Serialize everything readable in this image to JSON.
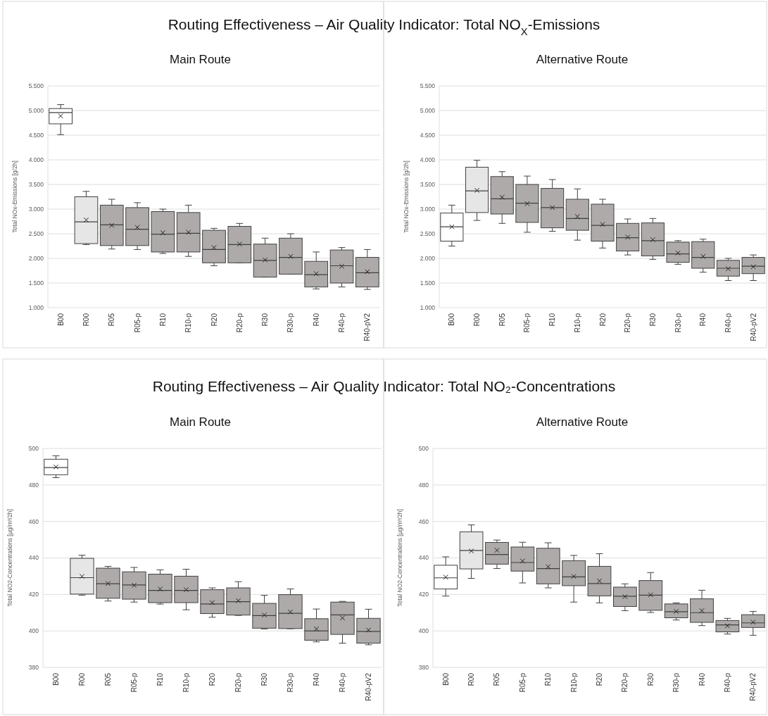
{
  "chart_data": [
    {
      "type": "box",
      "title": "Routing Effectiveness – Air Quality Indicator: Total NO$_{X}$-Emissions",
      "subtitle": "Main Route",
      "ylabel": "Total NOx-Emissions  [g/2h]",
      "categories": [
        "B00",
        "R00",
        "R05",
        "R05-p",
        "R10",
        "R10-p",
        "R20",
        "R20-p",
        "R30",
        "R30-p",
        "R40",
        "R40-p",
        "R40-pV2"
      ],
      "colors": [
        "#ffffff",
        "#e6e6e6",
        "#aeaaaa",
        "#aeaaaa",
        "#aeaaaa",
        "#aeaaaa",
        "#aeaaaa",
        "#aeaaaa",
        "#aeaaaa",
        "#aeaaaa",
        "#aeaaaa",
        "#aeaaaa",
        "#aeaaaa"
      ],
      "boxes": [
        {
          "low": 4510,
          "q1": 4730,
          "median": 4960,
          "q3": 5040,
          "high": 5120,
          "mean": 4890
        },
        {
          "low": 2280,
          "q1": 2300,
          "median": 2740,
          "q3": 3250,
          "high": 3360,
          "mean": 2780
        },
        {
          "low": 2190,
          "q1": 2260,
          "median": 2680,
          "q3": 3080,
          "high": 3200,
          "mean": 2670
        },
        {
          "low": 2180,
          "q1": 2260,
          "median": 2590,
          "q3": 3030,
          "high": 3130,
          "mean": 2630
        },
        {
          "low": 2100,
          "q1": 2130,
          "median": 2490,
          "q3": 2950,
          "high": 3000,
          "mean": 2520
        },
        {
          "low": 2040,
          "q1": 2130,
          "median": 2510,
          "q3": 2930,
          "high": 3080,
          "mean": 2530
        },
        {
          "low": 1850,
          "q1": 1910,
          "median": 2180,
          "q3": 2570,
          "high": 2610,
          "mean": 2220
        },
        {
          "low": 1910,
          "q1": 1910,
          "median": 2280,
          "q3": 2650,
          "high": 2710,
          "mean": 2290
        },
        {
          "low": 1620,
          "q1": 1620,
          "median": 1960,
          "q3": 2290,
          "high": 2410,
          "mean": 1970
        },
        {
          "low": 1680,
          "q1": 1680,
          "median": 2020,
          "q3": 2410,
          "high": 2500,
          "mean": 2040
        },
        {
          "low": 1380,
          "q1": 1420,
          "median": 1670,
          "q3": 1940,
          "high": 2130,
          "mean": 1690
        },
        {
          "low": 1420,
          "q1": 1500,
          "median": 1850,
          "q3": 2170,
          "high": 2220,
          "mean": 1840
        },
        {
          "low": 1370,
          "q1": 1420,
          "median": 1710,
          "q3": 2020,
          "high": 2180,
          "mean": 1730
        }
      ],
      "ylim": [
        1000,
        5500
      ],
      "yticks": [
        {
          "value": 1000,
          "label": "1.000"
        },
        {
          "value": 1500,
          "label": "1.500"
        },
        {
          "value": 2000,
          "label": "2.000"
        },
        {
          "value": 2500,
          "label": "2.500"
        },
        {
          "value": 3000,
          "label": "3.000"
        },
        {
          "value": 3500,
          "label": "3.500"
        },
        {
          "value": 4000,
          "label": "4.000"
        },
        {
          "value": 4500,
          "label": "4.500"
        },
        {
          "value": 5000,
          "label": "5.000"
        },
        {
          "value": 5500,
          "label": "5.500"
        }
      ],
      "grid": "y",
      "marker": "cross"
    },
    {
      "type": "box",
      "subtitle": "Alternative Route",
      "ylabel": "Total NOx-Emissions  [g/2h]",
      "categories": [
        "B00",
        "R00",
        "R05",
        "R05-p",
        "R10",
        "R10-p",
        "R20",
        "R20-p",
        "R30",
        "R30-p",
        "R40",
        "R40-p",
        "R40-pV2"
      ],
      "colors": [
        "#ffffff",
        "#e6e6e6",
        "#aeaaaa",
        "#aeaaaa",
        "#aeaaaa",
        "#aeaaaa",
        "#aeaaaa",
        "#aeaaaa",
        "#aeaaaa",
        "#aeaaaa",
        "#aeaaaa",
        "#aeaaaa",
        "#aeaaaa"
      ],
      "boxes": [
        {
          "low": 2250,
          "q1": 2350,
          "median": 2640,
          "q3": 2920,
          "high": 3080,
          "mean": 2640
        },
        {
          "low": 2770,
          "q1": 2930,
          "median": 3370,
          "q3": 3850,
          "high": 3990,
          "mean": 3380
        },
        {
          "low": 2710,
          "q1": 2900,
          "median": 3210,
          "q3": 3660,
          "high": 3760,
          "mean": 3240
        },
        {
          "low": 2530,
          "q1": 2730,
          "median": 3120,
          "q3": 3500,
          "high": 3670,
          "mean": 3110
        },
        {
          "low": 2550,
          "q1": 2620,
          "median": 3030,
          "q3": 3420,
          "high": 3600,
          "mean": 3030
        },
        {
          "low": 2370,
          "q1": 2570,
          "median": 2810,
          "q3": 3200,
          "high": 3410,
          "mean": 2850
        },
        {
          "low": 2210,
          "q1": 2350,
          "median": 2670,
          "q3": 3100,
          "high": 3200,
          "mean": 2690
        },
        {
          "low": 2070,
          "q1": 2150,
          "median": 2420,
          "q3": 2710,
          "high": 2800,
          "mean": 2430
        },
        {
          "low": 1980,
          "q1": 2050,
          "median": 2360,
          "q3": 2720,
          "high": 2810,
          "mean": 2380
        },
        {
          "low": 1880,
          "q1": 1920,
          "median": 2090,
          "q3": 2330,
          "high": 2360,
          "mean": 2110
        },
        {
          "low": 1720,
          "q1": 1800,
          "median": 2020,
          "q3": 2340,
          "high": 2390,
          "mean": 2040
        },
        {
          "low": 1550,
          "q1": 1640,
          "median": 1800,
          "q3": 1960,
          "high": 2000,
          "mean": 1790
        },
        {
          "low": 1550,
          "q1": 1690,
          "median": 1840,
          "q3": 2020,
          "high": 2070,
          "mean": 1830
        }
      ],
      "ylim": [
        1000,
        5500
      ],
      "yticks": [
        {
          "value": 1000,
          "label": "1.000"
        },
        {
          "value": 1500,
          "label": "1.500"
        },
        {
          "value": 2000,
          "label": "2.000"
        },
        {
          "value": 2500,
          "label": "2.500"
        },
        {
          "value": 3000,
          "label": "3.000"
        },
        {
          "value": 3500,
          "label": "3.500"
        },
        {
          "value": 4000,
          "label": "4.000"
        },
        {
          "value": 4500,
          "label": "4.500"
        },
        {
          "value": 5000,
          "label": "5.000"
        },
        {
          "value": 5500,
          "label": "5.500"
        }
      ],
      "grid": "y",
      "marker": "cross"
    },
    {
      "type": "box",
      "title": "Routing Effectiveness – Air Quality Indicator: Total NO₂-Concentrations",
      "subtitle": "Main Route",
      "ylabel": "Total NO2-Concentrations [µg/m³/2h]",
      "categories": [
        "B00",
        "R00",
        "R05",
        "R05-p",
        "R10",
        "R10-p",
        "R20",
        "R20-p",
        "R30",
        "R30-p",
        "R40",
        "R40-p",
        "R40-pV2"
      ],
      "colors": [
        "#ffffff",
        "#e6e6e6",
        "#aeaaaa",
        "#aeaaaa",
        "#aeaaaa",
        "#aeaaaa",
        "#aeaaaa",
        "#aeaaaa",
        "#aeaaaa",
        "#aeaaaa",
        "#aeaaaa",
        "#aeaaaa",
        "#aeaaaa"
      ],
      "boxes": [
        {
          "low": 484,
          "q1": 485.6,
          "median": 489.5,
          "q3": 494.1,
          "high": 496,
          "mean": 489.9
        },
        {
          "low": 419.6,
          "q1": 420.2,
          "median": 429.2,
          "q3": 439.8,
          "high": 441.5,
          "mean": 429.9
        },
        {
          "low": 416.4,
          "q1": 417.9,
          "median": 425.9,
          "q3": 434.4,
          "high": 435.4,
          "mean": 426
        },
        {
          "low": 415.8,
          "q1": 417.4,
          "median": 425.2,
          "q3": 432.4,
          "high": 434.8,
          "mean": 425
        },
        {
          "low": 414.7,
          "q1": 415.5,
          "median": 422.2,
          "q3": 431.1,
          "high": 433.5,
          "mean": 423
        },
        {
          "low": 411.6,
          "q1": 415.5,
          "median": 422.2,
          "q3": 430,
          "high": 433.8,
          "mean": 422.6
        },
        {
          "low": 407.5,
          "q1": 409.5,
          "median": 414.8,
          "q3": 422.6,
          "high": 423.6,
          "mean": 415.5
        },
        {
          "low": 408.5,
          "q1": 408.7,
          "median": 416,
          "q3": 423.6,
          "high": 427,
          "mean": 416.6
        },
        {
          "low": 401.1,
          "q1": 401.5,
          "median": 408.4,
          "q3": 415.1,
          "high": 419.5,
          "mean": 408.7
        },
        {
          "low": 401.2,
          "q1": 401.3,
          "median": 409.7,
          "q3": 419.9,
          "high": 423,
          "mean": 410.4
        },
        {
          "low": 394,
          "q1": 394.9,
          "median": 400,
          "q3": 406.7,
          "high": 412,
          "mean": 401.1
        },
        {
          "low": 393.3,
          "q1": 398.1,
          "median": 408.8,
          "q3": 415.8,
          "high": 416.2,
          "mean": 407.1
        },
        {
          "low": 392.4,
          "q1": 393.3,
          "median": 399.7,
          "q3": 406.9,
          "high": 411.9,
          "mean": 400.5
        }
      ],
      "ylim": [
        380,
        500
      ],
      "yticks": [
        380,
        400,
        420,
        440,
        460,
        480,
        500
      ],
      "grid": "y",
      "marker": "cross"
    },
    {
      "type": "box",
      "subtitle": "Alternative Route",
      "ylabel": "Total NO2-Concentrations [µg/m³/2h]",
      "categories": [
        "B00",
        "R00",
        "R05",
        "R05-p",
        "R10",
        "R10-p",
        "R20",
        "R20-p",
        "R30",
        "R30-p",
        "R40",
        "R40-p",
        "R40-pV2"
      ],
      "colors": [
        "#ffffff",
        "#e6e6e6",
        "#aeaaaa",
        "#aeaaaa",
        "#aeaaaa",
        "#aeaaaa",
        "#aeaaaa",
        "#aeaaaa",
        "#aeaaaa",
        "#aeaaaa",
        "#aeaaaa",
        "#aeaaaa",
        "#aeaaaa"
      ],
      "boxes": [
        {
          "low": 419.1,
          "q1": 423,
          "median": 429.1,
          "q3": 436,
          "high": 440.6,
          "mean": 429.5
        },
        {
          "low": 428.8,
          "q1": 434,
          "median": 444.1,
          "q3": 454.3,
          "high": 458.1,
          "mean": 443.8
        },
        {
          "low": 434.2,
          "q1": 436.6,
          "median": 441.9,
          "q3": 448.5,
          "high": 449.8,
          "mean": 444.2
        },
        {
          "low": 426.3,
          "q1": 432.8,
          "median": 437.5,
          "q3": 446,
          "high": 448.6,
          "mean": 438.3
        },
        {
          "low": 423.6,
          "q1": 425.8,
          "median": 434.2,
          "q3": 445.3,
          "high": 448.3,
          "mean": 435.2
        },
        {
          "low": 415.8,
          "q1": 424.8,
          "median": 429.6,
          "q3": 438.5,
          "high": 441.4,
          "mean": 429.9
        },
        {
          "low": 415.4,
          "q1": 419.2,
          "median": 426,
          "q3": 435.4,
          "high": 442.3,
          "mean": 427.4
        },
        {
          "low": 411.1,
          "q1": 413.4,
          "median": 419,
          "q3": 424,
          "high": 425.8,
          "mean": 418.8
        },
        {
          "low": 410.1,
          "q1": 411.3,
          "median": 419.6,
          "q3": 427.6,
          "high": 432,
          "mean": 419.8
        },
        {
          "low": 406,
          "q1": 407.2,
          "median": 410.5,
          "q3": 414.8,
          "high": 415.4,
          "mean": 410.7
        },
        {
          "low": 402.9,
          "q1": 404.7,
          "median": 410,
          "q3": 417.6,
          "high": 422.3,
          "mean": 411.1
        },
        {
          "low": 398.3,
          "q1": 399.5,
          "median": 403.3,
          "q3": 405.7,
          "high": 406.9,
          "mean": 402.8
        },
        {
          "low": 397.6,
          "q1": 401.9,
          "median": 404.4,
          "q3": 408.9,
          "high": 410.7,
          "mean": 404.8
        }
      ],
      "ylim": [
        380,
        500
      ],
      "yticks": [
        380,
        400,
        420,
        440,
        460,
        480,
        500
      ],
      "grid": "y",
      "marker": "cross"
    }
  ]
}
